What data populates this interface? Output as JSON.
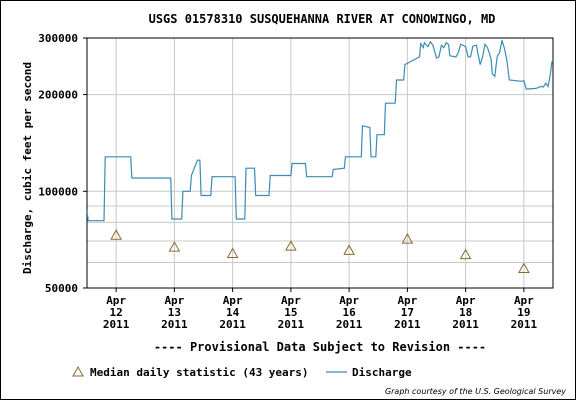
{
  "chart_data": {
    "type": "line",
    "title": "USGS 01578310 SUSQUEHANNA RIVER AT CONOWINGO, MD",
    "ylabel": "Discharge, cubic feet per second",
    "yscale": "log",
    "ylim": [
      50000,
      300000
    ],
    "yticks": [
      {
        "value": 50000,
        "label": "50000"
      },
      {
        "value": 100000,
        "label": "100000"
      },
      {
        "value": 200000,
        "label": "200000"
      },
      {
        "value": 300000,
        "label": "300000"
      }
    ],
    "yminor": [
      60000,
      70000,
      80000,
      90000
    ],
    "xlim": [
      "2011-04-11 12:00",
      "2011-04-19 12:00"
    ],
    "xticks": [
      {
        "date": "2011-04-12 00:00",
        "label": [
          "Apr",
          "12",
          "2011"
        ]
      },
      {
        "date": "2011-04-13 00:00",
        "label": [
          "Apr",
          "13",
          "2011"
        ]
      },
      {
        "date": "2011-04-14 00:00",
        "label": [
          "Apr",
          "14",
          "2011"
        ]
      },
      {
        "date": "2011-04-15 00:00",
        "label": [
          "Apr",
          "15",
          "2011"
        ]
      },
      {
        "date": "2011-04-16 00:00",
        "label": [
          "Apr",
          "16",
          "2011"
        ]
      },
      {
        "date": "2011-04-17 00:00",
        "label": [
          "Apr",
          "17",
          "2011"
        ]
      },
      {
        "date": "2011-04-18 00:00",
        "label": [
          "Apr",
          "18",
          "2011"
        ]
      },
      {
        "date": "2011-04-19 00:00",
        "label": [
          "Apr",
          "19",
          "2011"
        ]
      }
    ],
    "grid": true,
    "series": [
      {
        "name": "Discharge",
        "color": "#3b8bb5",
        "points": [
          [
            "2011-04-11 12:00",
            87000
          ],
          [
            "2011-04-11 12:30",
            81000
          ],
          [
            "2011-04-11 19:00",
            81000
          ],
          [
            "2011-04-11 19:30",
            128000
          ],
          [
            "2011-04-12 06:00",
            128000
          ],
          [
            "2011-04-12 06:30",
            110000
          ],
          [
            "2011-04-12 22:30",
            110000
          ],
          [
            "2011-04-12 23:00",
            82000
          ],
          [
            "2011-04-13 03:00",
            82000
          ],
          [
            "2011-04-13 03:30",
            100000
          ],
          [
            "2011-04-13 06:30",
            100000
          ],
          [
            "2011-04-13 07:00",
            112000
          ],
          [
            "2011-04-13 09:30",
            125000
          ],
          [
            "2011-04-13 10:30",
            125000
          ],
          [
            "2011-04-13 11:00",
            97000
          ],
          [
            "2011-04-13 15:00",
            97000
          ],
          [
            "2011-04-13 15:30",
            111000
          ],
          [
            "2011-04-14 01:00",
            111000
          ],
          [
            "2011-04-14 01:30",
            82000
          ],
          [
            "2011-04-14 05:00",
            82000
          ],
          [
            "2011-04-14 05:30",
            118000
          ],
          [
            "2011-04-14 09:00",
            118000
          ],
          [
            "2011-04-14 09:30",
            97000
          ],
          [
            "2011-04-14 15:00",
            97000
          ],
          [
            "2011-04-14 15:30",
            112000
          ],
          [
            "2011-04-15 00:00",
            112000
          ],
          [
            "2011-04-15 00:30",
            122000
          ],
          [
            "2011-04-15 06:00",
            122000
          ],
          [
            "2011-04-15 06:30",
            111000
          ],
          [
            "2011-04-15 17:00",
            111000
          ],
          [
            "2011-04-15 17:30",
            117000
          ],
          [
            "2011-04-15 22:00",
            118000
          ],
          [
            "2011-04-15 22:30",
            128000
          ],
          [
            "2011-04-16 05:00",
            128000
          ],
          [
            "2011-04-16 05:30",
            160000
          ],
          [
            "2011-04-16 08:30",
            158000
          ],
          [
            "2011-04-16 09:00",
            128000
          ],
          [
            "2011-04-16 11:00",
            128000
          ],
          [
            "2011-04-16 11:30",
            150000
          ],
          [
            "2011-04-16 14:30",
            150000
          ],
          [
            "2011-04-16 15:00",
            188000
          ],
          [
            "2011-04-16 19:00",
            188000
          ],
          [
            "2011-04-16 19:30",
            222000
          ],
          [
            "2011-04-16 22:30",
            222000
          ],
          [
            "2011-04-16 23:00",
            248000
          ],
          [
            "2011-04-17 05:00",
            262000
          ],
          [
            "2011-04-17 05:30",
            288000
          ],
          [
            "2011-04-17 06:30",
            280000
          ],
          [
            "2011-04-17 07:00",
            290000
          ],
          [
            "2011-04-17 08:30",
            282000
          ],
          [
            "2011-04-17 09:30",
            292000
          ],
          [
            "2011-04-17 10:30",
            285000
          ],
          [
            "2011-04-17 12:00",
            260000
          ],
          [
            "2011-04-17 13:00",
            262000
          ],
          [
            "2011-04-17 14:00",
            285000
          ],
          [
            "2011-04-17 15:00",
            280000
          ],
          [
            "2011-04-17 16:00",
            290000
          ],
          [
            "2011-04-17 17:00",
            286000
          ],
          [
            "2011-04-17 17:30",
            264000
          ],
          [
            "2011-04-17 20:00",
            262000
          ],
          [
            "2011-04-17 21:00",
            270000
          ],
          [
            "2011-04-17 22:00",
            287000
          ],
          [
            "2011-04-18 00:00",
            282000
          ],
          [
            "2011-04-18 01:00",
            262000
          ],
          [
            "2011-04-18 02:00",
            262000
          ],
          [
            "2011-04-18 03:00",
            283000
          ],
          [
            "2011-04-18 04:30",
            285000
          ],
          [
            "2011-04-18 05:00",
            270000
          ],
          [
            "2011-04-18 06:00",
            248000
          ],
          [
            "2011-04-18 07:00",
            262000
          ],
          [
            "2011-04-18 08:00",
            287000
          ],
          [
            "2011-04-18 09:00",
            280000
          ],
          [
            "2011-04-18 10:30",
            258000
          ],
          [
            "2011-04-18 11:00",
            232000
          ],
          [
            "2011-04-18 12:00",
            228000
          ],
          [
            "2011-04-18 13:00",
            263000
          ],
          [
            "2011-04-18 14:00",
            270000
          ],
          [
            "2011-04-18 15:00",
            295000
          ],
          [
            "2011-04-18 16:00",
            278000
          ],
          [
            "2011-04-18 17:00",
            255000
          ],
          [
            "2011-04-18 18:00",
            222000
          ],
          [
            "2011-04-18 23:00",
            220000
          ],
          [
            "2011-04-19 00:00",
            221000
          ],
          [
            "2011-04-19 01:00",
            208000
          ],
          [
            "2011-04-19 05:00",
            209000
          ],
          [
            "2011-04-19 07:00",
            212000
          ],
          [
            "2011-04-19 08:00",
            211000
          ],
          [
            "2011-04-19 09:00",
            217000
          ],
          [
            "2011-04-19 10:00",
            212000
          ],
          [
            "2011-04-19 11:00",
            234000
          ],
          [
            "2011-04-19 11:30",
            252000
          ],
          [
            "2011-04-19 12:00",
            256000
          ]
        ]
      },
      {
        "name": "Median daily statistic (43 years)",
        "marker": "triangle",
        "color": "#8b6a2e",
        "points": [
          [
            "2011-04-12 00:00",
            73000
          ],
          [
            "2011-04-13 00:00",
            67000
          ],
          [
            "2011-04-14 00:00",
            64000
          ],
          [
            "2011-04-15 00:00",
            67500
          ],
          [
            "2011-04-16 00:00",
            65500
          ],
          [
            "2011-04-17 00:00",
            71000
          ],
          [
            "2011-04-18 00:00",
            63500
          ],
          [
            "2011-04-19 00:00",
            57500
          ]
        ]
      }
    ]
  },
  "notice": "---- Provisional Data Subject to Revision ----",
  "legend": {
    "median_label": "Median daily statistic (43 years)",
    "discharge_label": "Discharge"
  },
  "credit": "Graph courtesy of the U.S. Geological Survey",
  "colors": {
    "notice": "#dd0000",
    "grid": "#c8c8c8"
  }
}
